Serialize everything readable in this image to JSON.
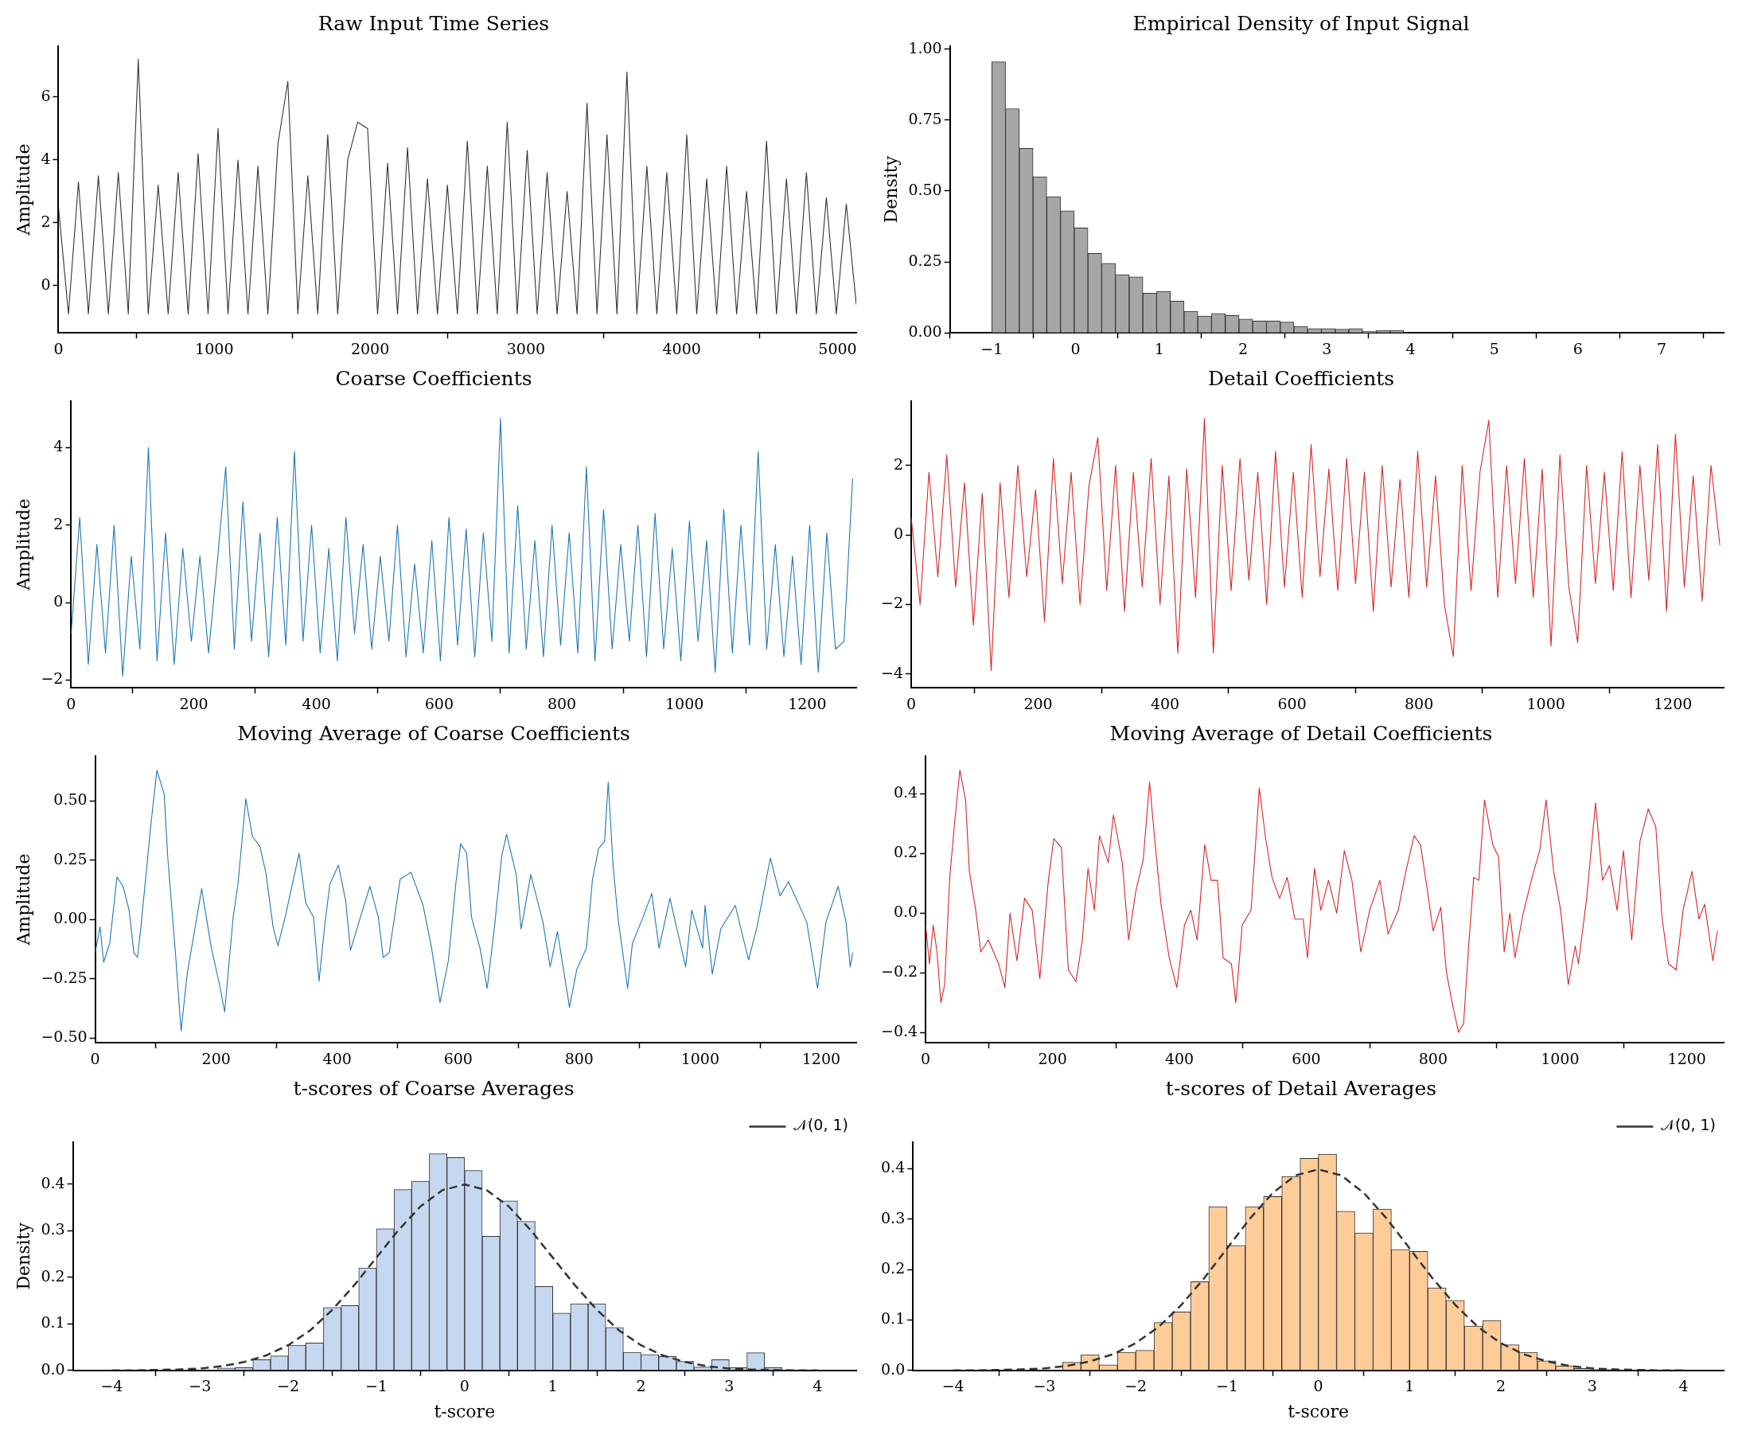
{
  "chart_data": [
    {
      "type": "line",
      "title": "Raw Input Time Series",
      "ylabel": "Amplitude",
      "color": "#333333",
      "x": [
        0,
        64,
        128,
        192,
        256,
        320,
        384,
        448,
        512,
        576,
        640,
        704,
        768,
        832,
        896,
        960,
        1024,
        1088,
        1152,
        1216,
        1280,
        1344,
        1408,
        1472,
        1536,
        1600,
        1664,
        1728,
        1792,
        1856,
        1920,
        1984,
        2048,
        2112,
        2176,
        2240,
        2304,
        2368,
        2432,
        2496,
        2560,
        2624,
        2688,
        2752,
        2816,
        2880,
        2944,
        3008,
        3072,
        3136,
        3200,
        3264,
        3328,
        3392,
        3456,
        3520,
        3584,
        3648,
        3712,
        3776,
        3840,
        3904,
        3968,
        4032,
        4096,
        4160,
        4224,
        4288,
        4352,
        4416,
        4480,
        4544,
        4608,
        4672,
        4736,
        4800,
        4864,
        4928,
        4992,
        5056,
        5120
      ],
      "values": [
        2.5,
        -0.9,
        3.3,
        -0.9,
        3.5,
        -0.9,
        3.6,
        -0.9,
        7.2,
        -0.9,
        3.2,
        -0.9,
        3.6,
        -0.9,
        4.2,
        -0.9,
        5.0,
        -0.9,
        4.0,
        -0.9,
        3.8,
        -0.9,
        4.5,
        6.5,
        -0.9,
        3.5,
        -0.9,
        4.8,
        -0.9,
        4.0,
        5.2,
        5.0,
        -0.9,
        3.9,
        -0.9,
        4.4,
        -0.9,
        3.4,
        -0.9,
        3.2,
        -0.9,
        4.6,
        -0.9,
        3.8,
        -0.9,
        5.2,
        -0.9,
        4.3,
        -0.9,
        3.6,
        -0.9,
        3.0,
        -0.9,
        5.8,
        -0.9,
        4.8,
        -0.9,
        6.8,
        -0.9,
        3.8,
        -0.9,
        3.6,
        -0.9,
        4.8,
        -0.9,
        3.4,
        -0.9,
        3.8,
        -0.9,
        3.0,
        -0.9,
        4.6,
        -0.9,
        3.4,
        -0.9,
        3.6,
        -0.9,
        2.8,
        -0.9,
        2.6,
        -0.6
      ],
      "xlim": [
        0,
        5120
      ],
      "xticks": [
        0,
        1000,
        2000,
        3000,
        4000,
        5000
      ],
      "ylim": [
        -1.5,
        7.62
      ],
      "yticks": [
        0,
        2,
        4,
        6
      ],
      "grid": false
    },
    {
      "type": "histogram",
      "title": "Empirical Density of Input Signal",
      "ylabel": "Density",
      "color": "#a6a6a6",
      "bins": [
        -1,
        -0.836,
        -0.672,
        -0.508,
        -0.344,
        -0.18,
        -0.016,
        0.148,
        0.312,
        0.476,
        0.64,
        0.804,
        0.968,
        1.132,
        1.296,
        1.46,
        1.624,
        1.788,
        1.952,
        2.116,
        2.28,
        2.444,
        2.608,
        2.772,
        2.936,
        3.1,
        3.264,
        3.428,
        3.592,
        3.756,
        3.92,
        4.084,
        4.248,
        4.412,
        4.576,
        4.74,
        4.904
      ],
      "values": [
        0.955,
        0.79,
        0.65,
        0.55,
        0.48,
        0.43,
        0.37,
        0.28,
        0.245,
        0.205,
        0.197,
        0.14,
        0.146,
        0.112,
        0.076,
        0.059,
        0.068,
        0.061,
        0.049,
        0.042,
        0.042,
        0.038,
        0.023,
        0.015,
        0.015,
        0.013,
        0.015,
        0.006,
        0.009,
        0.009,
        null,
        null,
        null,
        null,
        null,
        null
      ],
      "xlim": [
        -1.5,
        7.74
      ],
      "xticks": [
        {
          "value": -1,
          "label": "−1"
        },
        0,
        1,
        2,
        3,
        4,
        5,
        6,
        7
      ],
      "ylim": [
        0,
        1.01
      ],
      "yticks": [
        {
          "value": 0,
          "label": "0.00"
        },
        {
          "value": 0.25,
          "label": "0.25"
        },
        {
          "value": 0.5,
          "label": "0.50"
        },
        {
          "value": 0.75,
          "label": "0.75"
        },
        {
          "value": 1,
          "label": "1.00"
        }
      ],
      "grid": false
    },
    {
      "type": "line",
      "title": "Coarse Coefficients",
      "ylabel": "Amplitude",
      "color": "#1f77b4",
      "x": [
        0,
        14,
        28,
        42,
        56,
        70,
        84,
        98,
        112,
        126,
        140,
        154,
        168,
        182,
        196,
        210,
        224,
        238,
        252,
        266,
        280,
        294,
        308,
        322,
        336,
        350,
        364,
        378,
        392,
        406,
        420,
        434,
        448,
        462,
        476,
        490,
        504,
        518,
        532,
        546,
        560,
        574,
        588,
        602,
        616,
        630,
        644,
        658,
        672,
        686,
        700,
        714,
        728,
        742,
        756,
        770,
        784,
        798,
        812,
        826,
        840,
        854,
        868,
        882,
        896,
        910,
        924,
        938,
        952,
        966,
        980,
        994,
        1008,
        1022,
        1036,
        1050,
        1064,
        1078,
        1092,
        1106,
        1120,
        1134,
        1148,
        1162,
        1176,
        1190,
        1204,
        1218,
        1232,
        1246,
        1260,
        1274
      ],
      "values": [
        -0.8,
        2.2,
        -1.6,
        1.5,
        -1.3,
        2.0,
        -1.9,
        1.2,
        -1.2,
        4.0,
        -1.5,
        1.8,
        -1.6,
        1.4,
        -1.0,
        1.2,
        -1.3,
        1.0,
        3.5,
        -1.2,
        2.6,
        -1.0,
        1.8,
        -1.4,
        2.2,
        -1.1,
        3.9,
        -1.0,
        2.0,
        -1.3,
        1.4,
        -1.5,
        2.2,
        -0.8,
        1.5,
        -1.2,
        1.2,
        -1.0,
        2.0,
        -1.4,
        1.0,
        -1.3,
        1.6,
        -1.5,
        2.2,
        -1.1,
        1.9,
        -1.4,
        1.8,
        -1.0,
        4.75,
        -1.3,
        2.5,
        -1.2,
        1.6,
        -1.4,
        2.0,
        -1.1,
        1.8,
        -1.3,
        3.5,
        -1.5,
        2.4,
        -1.2,
        1.5,
        -1.0,
        2.0,
        -1.4,
        2.3,
        -1.2,
        1.4,
        -1.5,
        2.1,
        -1.0,
        1.6,
        -1.8,
        2.4,
        -1.3,
        2.0,
        -1.1,
        3.9,
        -1.2,
        1.5,
        -1.4,
        1.2,
        -1.6,
        2.0,
        -1.8,
        1.8,
        -1.2,
        -1.0,
        3.2
      ],
      "xlim": [
        0,
        1280
      ],
      "xticks": [
        0,
        200,
        400,
        600,
        800,
        1000,
        1200
      ],
      "ylim": [
        -2.2,
        5.2
      ],
      "yticks": [
        {
          "value": -2,
          "label": "−2"
        },
        0,
        2,
        4
      ],
      "grid": false
    },
    {
      "type": "line",
      "title": "Detail Coefficients",
      "color": "#d62728",
      "x": [
        0,
        14,
        28,
        42,
        56,
        70,
        84,
        98,
        112,
        126,
        140,
        154,
        168,
        182,
        196,
        210,
        224,
        238,
        252,
        266,
        280,
        294,
        308,
        322,
        336,
        350,
        364,
        378,
        392,
        406,
        420,
        434,
        448,
        462,
        476,
        490,
        504,
        518,
        532,
        546,
        560,
        574,
        588,
        602,
        616,
        630,
        644,
        658,
        672,
        686,
        700,
        714,
        728,
        742,
        756,
        770,
        784,
        798,
        812,
        826,
        840,
        854,
        868,
        882,
        896,
        910,
        924,
        938,
        952,
        966,
        980,
        994,
        1008,
        1022,
        1036,
        1050,
        1064,
        1078,
        1092,
        1106,
        1120,
        1134,
        1148,
        1162,
        1176,
        1190,
        1204,
        1218,
        1232,
        1246,
        1260,
        1274
      ],
      "values": [
        0.5,
        -2.0,
        1.8,
        -1.2,
        2.3,
        -1.5,
        1.5,
        -2.6,
        1.2,
        -3.9,
        1.5,
        -1.8,
        2.0,
        -1.2,
        1.3,
        -2.5,
        2.2,
        -1.4,
        1.8,
        -2.0,
        1.4,
        2.8,
        -1.6,
        2.0,
        -2.2,
        1.8,
        -1.5,
        2.2,
        -2.0,
        1.7,
        -3.4,
        1.9,
        -1.8,
        3.35,
        -3.4,
        2.0,
        -1.6,
        2.2,
        -1.3,
        1.8,
        -2.0,
        2.4,
        -1.5,
        1.8,
        -1.8,
        2.6,
        -1.2,
        1.9,
        -1.6,
        2.2,
        -1.4,
        1.8,
        -2.2,
        2.0,
        -1.5,
        1.6,
        -1.8,
        2.4,
        -1.5,
        1.7,
        -2.0,
        -3.5,
        2.0,
        -1.6,
        1.8,
        3.3,
        -1.8,
        2.0,
        -1.4,
        2.2,
        -1.8,
        1.9,
        -3.2,
        2.3,
        -1.5,
        -3.1,
        2.0,
        -1.4,
        1.8,
        -1.6,
        2.4,
        -1.8,
        2.0,
        -1.3,
        2.6,
        -2.2,
        2.9,
        -1.5,
        1.7,
        -1.9,
        2.0,
        -0.3
      ],
      "xlim": [
        0,
        1280
      ],
      "xticks": [
        0,
        200,
        400,
        600,
        800,
        1000,
        1200
      ],
      "ylim": [
        -4.4,
        3.85
      ],
      "yticks": [
        {
          "value": -4,
          "label": "−4"
        },
        {
          "value": -2,
          "label": "−2"
        },
        0,
        2
      ],
      "grid": false
    },
    {
      "type": "line",
      "title": "Moving Average of Coarse Coefficients",
      "ylabel": "Amplitude",
      "color": "#1f77b4",
      "x": [
        0,
        8,
        14,
        24,
        36,
        46,
        56,
        64,
        70,
        76,
        84,
        92,
        102,
        114,
        120,
        132,
        142,
        152,
        176,
        192,
        206,
        214,
        228,
        236,
        249,
        260,
        272,
        282,
        294,
        302,
        314,
        337,
        348,
        361,
        370,
        380,
        388,
        402,
        414,
        422,
        436,
        454,
        468,
        476,
        486,
        504,
        522,
        542,
        556,
        570,
        584,
        596,
        604,
        614,
        622,
        636,
        648,
        660,
        672,
        680,
        696,
        704,
        720,
        740,
        752,
        764,
        784,
        796,
        812,
        822,
        832,
        842,
        848,
        856,
        864,
        880,
        888,
        904,
        920,
        932,
        950,
        976,
        986,
        1004,
        1008,
        1020,
        1034,
        1058,
        1080,
        1094,
        1116,
        1132,
        1146,
        1176,
        1194,
        1208,
        1228,
        1241,
        1248,
        1252
      ],
      "values": [
        -0.14,
        -0.03,
        -0.18,
        -0.1,
        0.18,
        0.14,
        0.04,
        -0.14,
        -0.16,
        -0.02,
        0.19,
        0.4,
        0.63,
        0.53,
        0.26,
        -0.12,
        -0.47,
        -0.23,
        0.13,
        -0.12,
        -0.28,
        -0.39,
        0.01,
        0.15,
        0.51,
        0.35,
        0.31,
        0.2,
        -0.03,
        -0.11,
        0.01,
        0.28,
        0.07,
        0.01,
        -0.26,
        -0.01,
        0.15,
        0.23,
        0.08,
        -0.13,
        -0.01,
        0.14,
        0.01,
        -0.16,
        -0.14,
        0.17,
        0.2,
        0.06,
        -0.12,
        -0.35,
        -0.17,
        0.15,
        0.32,
        0.28,
        0.01,
        -0.12,
        -0.29,
        -0.03,
        0.27,
        0.36,
        0.19,
        -0.04,
        0.19,
        -0.01,
        -0.2,
        -0.05,
        -0.37,
        -0.21,
        -0.12,
        0.17,
        0.3,
        0.33,
        0.58,
        0.23,
        0.01,
        -0.29,
        -0.1,
        0.0,
        0.11,
        -0.12,
        0.09,
        -0.2,
        0.04,
        -0.12,
        0.06,
        -0.23,
        -0.04,
        0.06,
        -0.17,
        -0.03,
        0.26,
        0.1,
        0.16,
        -0.01,
        -0.29,
        -0.01,
        0.14,
        -0.01,
        -0.2,
        -0.14
      ],
      "xlim": [
        0,
        1258
      ],
      "xticks": [
        0,
        200,
        400,
        600,
        800,
        1000,
        1200
      ],
      "ylim": [
        -0.52,
        0.69
      ],
      "yticks": [
        {
          "value": -0.5,
          "label": "−0.50"
        },
        {
          "value": -0.25,
          "label": "−0.25"
        },
        {
          "value": 0,
          "label": "0.00"
        },
        {
          "value": 0.25,
          "label": "0.25"
        },
        {
          "value": 0.5,
          "label": "0.50"
        }
      ],
      "grid": false
    },
    {
      "type": "line",
      "title": "Moving Average of Detail Coefficients",
      "color": "#d62728",
      "x": [
        0,
        6,
        12,
        18,
        24,
        30,
        38,
        46,
        54,
        63,
        69,
        79,
        87,
        99,
        115,
        125,
        133,
        144,
        156,
        168,
        180,
        193,
        202,
        214,
        225,
        237,
        247,
        256,
        266,
        274,
        288,
        296,
        310,
        320,
        331,
        343,
        353,
        361,
        371,
        384,
        396,
        408,
        418,
        428,
        440,
        450,
        460,
        469,
        482,
        489,
        499,
        513,
        526,
        536,
        546,
        558,
        570,
        582,
        595,
        602,
        613,
        623,
        635,
        648,
        660,
        672,
        686,
        700,
        716,
        729,
        745,
        756,
        770,
        780,
        790,
        800,
        812,
        821,
        830,
        840,
        848,
        856,
        864,
        872,
        881,
        894,
        903,
        912,
        921,
        929,
        942,
        956,
        968,
        978,
        990,
        1001,
        1013,
        1024,
        1029,
        1042,
        1056,
        1067,
        1078,
        1090,
        1100,
        1113,
        1126,
        1139,
        1151,
        1161,
        1171,
        1183,
        1194,
        1208,
        1219,
        1228,
        1241,
        1248
      ],
      "values": [
        -0.04,
        -0.17,
        -0.04,
        -0.13,
        -0.3,
        -0.24,
        0.12,
        0.31,
        0.48,
        0.38,
        0.14,
        0.01,
        -0.13,
        -0.09,
        -0.17,
        -0.25,
        0.0,
        -0.16,
        0.05,
        0.01,
        -0.22,
        0.1,
        0.25,
        0.22,
        -0.19,
        -0.23,
        -0.09,
        0.15,
        0.01,
        0.26,
        0.17,
        0.33,
        0.17,
        -0.09,
        0.07,
        0.18,
        0.44,
        0.25,
        0.03,
        -0.15,
        -0.25,
        -0.04,
        0.01,
        -0.09,
        0.23,
        0.11,
        0.11,
        -0.15,
        -0.17,
        -0.3,
        -0.04,
        0.01,
        0.42,
        0.25,
        0.12,
        0.05,
        0.12,
        -0.02,
        -0.02,
        -0.15,
        0.15,
        0.01,
        0.11,
        0.0,
        0.21,
        0.11,
        -0.13,
        0.01,
        0.11,
        -0.07,
        0.01,
        0.13,
        0.26,
        0.23,
        0.09,
        -0.06,
        0.02,
        -0.2,
        -0.3,
        -0.4,
        -0.37,
        -0.11,
        0.12,
        0.11,
        0.38,
        0.23,
        0.19,
        -0.13,
        0.0,
        -0.15,
        0.0,
        0.12,
        0.21,
        0.38,
        0.14,
        0.01,
        -0.24,
        -0.11,
        -0.17,
        0.05,
        0.37,
        0.11,
        0.16,
        0.01,
        0.21,
        -0.09,
        0.24,
        0.35,
        0.29,
        -0.02,
        -0.17,
        -0.19,
        0.01,
        0.14,
        -0.02,
        0.03,
        -0.16,
        -0.06
      ],
      "xlim": [
        0,
        1258
      ],
      "xticks": [
        0,
        200,
        400,
        600,
        800,
        1000,
        1200
      ],
      "ylim": [
        -0.435,
        0.527
      ],
      "yticks": [
        {
          "value": -0.4,
          "label": "−0.4"
        },
        {
          "value": -0.2,
          "label": "−0.2"
        },
        {
          "value": 0,
          "label": "0.0"
        },
        {
          "value": 0.2,
          "label": "0.2"
        },
        {
          "value": 0.4,
          "label": "0.4"
        }
      ],
      "grid": false
    },
    {
      "type": "histogram",
      "title": "t-scores of Coarse Averages",
      "xlabel": "t-score",
      "ylabel": "Density",
      "color": "#c6d8ef",
      "legend": "top right",
      "bins": [
        -2.8,
        -2.6,
        -2.4,
        -2.2,
        -2.0,
        -1.8,
        -1.6,
        -1.4,
        -1.2,
        -1.0,
        -0.8,
        -0.6,
        -0.4,
        -0.2,
        0,
        0.2,
        0.4,
        0.6,
        0.8,
        1.0,
        1.2,
        1.4,
        1.6,
        1.8,
        2.0,
        2.2,
        2.4,
        2.6,
        2.8,
        3.0,
        3.2,
        3.4,
        3.6
      ],
      "values": [
        0.005,
        0.006,
        0.023,
        0.031,
        0.054,
        0.059,
        0.135,
        0.139,
        0.22,
        0.304,
        0.388,
        0.406,
        0.465,
        0.457,
        0.429,
        0.288,
        0.364,
        0.32,
        0.18,
        0.123,
        0.143,
        0.143,
        0.092,
        0.039,
        0.034,
        0.03,
        0.019,
        0.007,
        0.023,
        0.006,
        0.038,
        0.006
      ],
      "series": [
        {
          "type": "line",
          "name": "𝒩(0, 1)",
          "color": "#333333",
          "line_style": "dashed",
          "x": [
            -4,
            -3.75,
            -3.5,
            -3.25,
            -3,
            -2.75,
            -2.5,
            -2.25,
            -2,
            -1.75,
            -1.5,
            -1.25,
            -1,
            -0.75,
            -0.5,
            -0.25,
            0,
            0.25,
            0.5,
            0.75,
            1,
            1.25,
            1.5,
            1.75,
            2,
            2.25,
            2.5,
            2.75,
            3,
            3.25,
            3.5,
            3.75,
            4
          ],
          "values": [
            0.0,
            0.0,
            0.001,
            0.002,
            0.004,
            0.009,
            0.018,
            0.032,
            0.054,
            0.086,
            0.13,
            0.183,
            0.242,
            0.301,
            0.352,
            0.387,
            0.399,
            0.387,
            0.352,
            0.301,
            0.242,
            0.183,
            0.13,
            0.086,
            0.054,
            0.032,
            0.018,
            0.009,
            0.004,
            0.002,
            0.001,
            0.0,
            0.0
          ]
        }
      ],
      "xlim": [
        -4.44,
        4.44
      ],
      "xticks": [
        {
          "value": -4,
          "label": "−4"
        },
        {
          "value": -3,
          "label": "−3"
        },
        {
          "value": -2,
          "label": "−2"
        },
        {
          "value": -1,
          "label": "−1"
        },
        0,
        1,
        2,
        3,
        4
      ],
      "ylim": [
        0,
        0.49
      ],
      "yticks": [
        {
          "value": 0,
          "label": "0.0"
        },
        {
          "value": 0.1,
          "label": "0.1"
        },
        {
          "value": 0.2,
          "label": "0.2"
        },
        {
          "value": 0.3,
          "label": "0.3"
        },
        {
          "value": 0.4,
          "label": "0.4"
        }
      ],
      "grid": false
    },
    {
      "type": "histogram",
      "title": "t-scores of Detail Averages",
      "xlabel": "t-score",
      "color": "#fdcc99",
      "legend": "top right",
      "bins": [
        -2.8,
        -2.6,
        -2.4,
        -2.2,
        -2.0,
        -1.8,
        -1.6,
        -1.4,
        -1.2,
        -1.0,
        -0.8,
        -0.6,
        -0.4,
        -0.2,
        0,
        0.2,
        0.4,
        0.6,
        0.8,
        1.0,
        1.2,
        1.4,
        1.6,
        1.8,
        2.0,
        2.2,
        2.4,
        2.6,
        2.8,
        3.0,
        3.2
      ],
      "values": [
        0.016,
        0.031,
        0.011,
        0.036,
        0.04,
        0.095,
        0.116,
        0.176,
        0.325,
        0.248,
        0.325,
        0.345,
        0.385,
        0.421,
        0.429,
        0.316,
        0.273,
        0.32,
        0.24,
        0.236,
        0.164,
        0.139,
        0.088,
        0.099,
        0.051,
        0.036,
        0.019,
        0.009,
        0.004,
        0.002
      ],
      "series": [
        {
          "type": "line",
          "name": "𝒩(0, 1)",
          "color": "#333333",
          "line_style": "dashed",
          "x": [
            -4,
            -3.75,
            -3.5,
            -3.25,
            -3,
            -2.75,
            -2.5,
            -2.25,
            -2,
            -1.75,
            -1.5,
            -1.25,
            -1,
            -0.75,
            -0.5,
            -0.25,
            0,
            0.25,
            0.5,
            0.75,
            1,
            1.25,
            1.5,
            1.75,
            2,
            2.25,
            2.5,
            2.75,
            3,
            3.25,
            3.5,
            3.75,
            4
          ],
          "values": [
            0.0,
            0.0,
            0.001,
            0.002,
            0.004,
            0.009,
            0.018,
            0.032,
            0.054,
            0.086,
            0.13,
            0.183,
            0.242,
            0.301,
            0.352,
            0.387,
            0.399,
            0.387,
            0.352,
            0.301,
            0.242,
            0.183,
            0.13,
            0.086,
            0.054,
            0.032,
            0.018,
            0.009,
            0.004,
            0.002,
            0.001,
            0.0,
            0.0
          ]
        }
      ],
      "xlim": [
        -4.44,
        4.44
      ],
      "xticks": [
        {
          "value": -4,
          "label": "−4"
        },
        {
          "value": -3,
          "label": "−3"
        },
        {
          "value": -2,
          "label": "−2"
        },
        {
          "value": -1,
          "label": "−1"
        },
        0,
        1,
        2,
        3,
        4
      ],
      "ylim": [
        0,
        0.453
      ],
      "yticks": [
        {
          "value": 0,
          "label": "0.0"
        },
        {
          "value": 0.1,
          "label": "0.1"
        },
        {
          "value": 0.2,
          "label": "0.2"
        },
        {
          "value": 0.3,
          "label": "0.3"
        },
        {
          "value": 0.4,
          "label": "0.4"
        }
      ],
      "grid": false
    }
  ]
}
